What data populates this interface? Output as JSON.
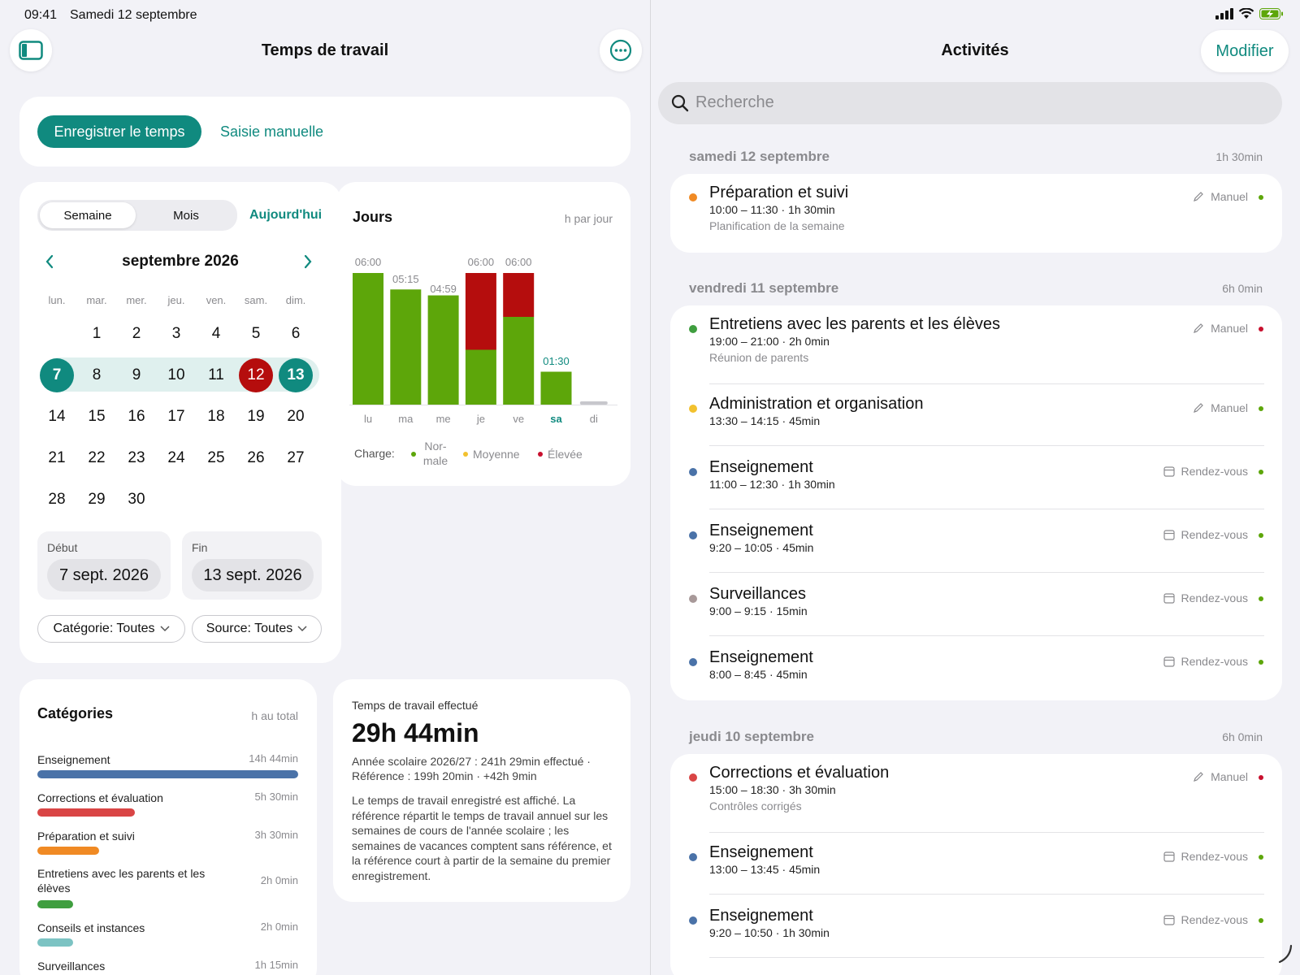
{
  "status": {
    "time": "09:41",
    "date": "Samedi 12 septembre"
  },
  "left": {
    "title": "Temps de travail",
    "record_button": "Enregistrer le temps",
    "manual_entry": "Saisie manuelle",
    "segments": {
      "week": "Semaine",
      "month": "Mois"
    },
    "today": "Aujourd'hui",
    "month_title": "septembre 2026",
    "weekdays": [
      "lun.",
      "mar.",
      "mer.",
      "jeu.",
      "ven.",
      "sam.",
      "dim."
    ],
    "days": [
      "1",
      "2",
      "3",
      "4",
      "5",
      "6",
      "7",
      "8",
      "9",
      "10",
      "11",
      "12",
      "13",
      "14",
      "15",
      "16",
      "17",
      "18",
      "19",
      "20",
      "21",
      "22",
      "23",
      "24",
      "25",
      "26",
      "27",
      "28",
      "29",
      "30"
    ],
    "start": {
      "label": "Début",
      "value": "7 sept. 2026"
    },
    "end": {
      "label": "Fin",
      "value": "13 sept. 2026"
    },
    "filter_category": "Catégorie: Toutes",
    "filter_source": "Source: Toutes"
  },
  "chart_data": {
    "type": "bar",
    "title": "Jours",
    "unit_label": "h par jour",
    "categories": [
      "lu",
      "ma",
      "me",
      "je",
      "ve",
      "sa",
      "di"
    ],
    "labels": [
      "06:00",
      "05:15",
      "04:59",
      "06:00",
      "06:00",
      "01:30",
      ""
    ],
    "ylim": [
      0,
      6
    ],
    "series": [
      {
        "name": "Nor-male",
        "color": "#5da60a",
        "values": [
          6.0,
          5.25,
          4.98,
          2.5,
          4.0,
          1.5,
          0
        ]
      },
      {
        "name": "Élevée",
        "color": "#b50d0d",
        "values": [
          0,
          0,
          0,
          3.5,
          2.0,
          0,
          0
        ]
      }
    ],
    "legend": {
      "label": "Charge:",
      "items": [
        {
          "text": "Nor-male",
          "color": "#5da60a"
        },
        {
          "text": "Moyenne",
          "color": "#f2c12e"
        },
        {
          "text": "Élevée",
          "color": "#c8102e"
        }
      ]
    }
  },
  "categories": {
    "title": "Catégories",
    "unit": "h au total",
    "items": [
      {
        "name": "Enseignement",
        "value": "14h 44min",
        "color": "#4a72a8",
        "hours": 14.73
      },
      {
        "name": "Corrections et évaluation",
        "value": "5h 30min",
        "color": "#d94545",
        "hours": 5.5
      },
      {
        "name": "Préparation et suivi",
        "value": "3h 30min",
        "color": "#f08a24",
        "hours": 3.5
      },
      {
        "name": "Entretiens avec les parents et les élèves",
        "value": "2h 0min",
        "color": "#3f9e3f",
        "hours": 2.0
      },
      {
        "name": "Conseils et instances",
        "value": "2h 0min",
        "color": "#7cc3c3",
        "hours": 2.0
      },
      {
        "name": "Surveillances",
        "value": "1h 15min",
        "color": "#a89999",
        "hours": 1.25
      }
    ]
  },
  "summary": {
    "label": "Temps de travail effectué",
    "total": "29h 44min",
    "line1": "Année scolaire 2026/27 : 241h 29min effectué ·",
    "line2": "Référence : 199h 20min · +42h 9min",
    "paragraph": "Le temps de travail enregistré est affiché. La référence répartit le temps de travail annuel sur les semaines de cours de l'année scolaire ; les semaines de vacances comptent sans référence, et la référence court à partir de la semaine du premier enregistrement."
  },
  "right": {
    "title": "Activités",
    "edit": "Modifier",
    "search_placeholder": "Recherche",
    "sections": [
      {
        "title": "samedi 12 septembre",
        "total": "1h 30min",
        "rows": [
          {
            "title": "Préparation et suivi",
            "time": "10:00 – 11:30 · 1h 30min",
            "note": "Planification de la semaine",
            "source": "Manuel",
            "dot": "#f08a24",
            "status": "#5da60a",
            "icon": "pencil"
          }
        ]
      },
      {
        "title": "vendredi 11 septembre",
        "total": "6h 0min",
        "rows": [
          {
            "title": "Entretiens avec les parents et les élèves",
            "time": "19:00 – 21:00 · 2h 0min",
            "note": "Réunion de parents",
            "source": "Manuel",
            "dot": "#3f9e3f",
            "status": "#c8102e",
            "icon": "pencil"
          },
          {
            "title": "Administration et organisation",
            "time": "13:30 – 14:15 · 45min",
            "note": "",
            "source": "Manuel",
            "dot": "#f2c12e",
            "status": "#5da60a",
            "icon": "pencil"
          },
          {
            "title": "Enseignement",
            "time": "11:00 – 12:30 · 1h 30min",
            "note": "",
            "source": "Rendez-vous",
            "dot": "#4a72a8",
            "status": "#5da60a",
            "icon": "calendar"
          },
          {
            "title": "Enseignement",
            "time": "9:20 – 10:05 · 45min",
            "note": "",
            "source": "Rendez-vous",
            "dot": "#4a72a8",
            "status": "#5da60a",
            "icon": "calendar"
          },
          {
            "title": "Surveillances",
            "time": "9:00 – 9:15 · 15min",
            "note": "",
            "source": "Rendez-vous",
            "dot": "#a89999",
            "status": "#5da60a",
            "icon": "calendar"
          },
          {
            "title": "Enseignement",
            "time": "8:00 – 8:45 · 45min",
            "note": "",
            "source": "Rendez-vous",
            "dot": "#4a72a8",
            "status": "#5da60a",
            "icon": "calendar"
          }
        ]
      },
      {
        "title": "jeudi 10 septembre",
        "total": "6h 0min",
        "rows": [
          {
            "title": "Corrections et évaluation",
            "time": "15:00 – 18:30 · 3h 30min",
            "note": "Contrôles corrigés",
            "source": "Manuel",
            "dot": "#d94545",
            "status": "#c8102e",
            "icon": "pencil"
          },
          {
            "title": "Enseignement",
            "time": "13:00 – 13:45 · 45min",
            "note": "",
            "source": "Rendez-vous",
            "dot": "#4a72a8",
            "status": "#5da60a",
            "icon": "calendar"
          },
          {
            "title": "Enseignement",
            "time": "9:20 – 10:50 · 1h 30min",
            "note": "",
            "source": "Rendez-vous",
            "dot": "#4a72a8",
            "status": "#5da60a",
            "icon": "calendar"
          }
        ]
      }
    ]
  }
}
